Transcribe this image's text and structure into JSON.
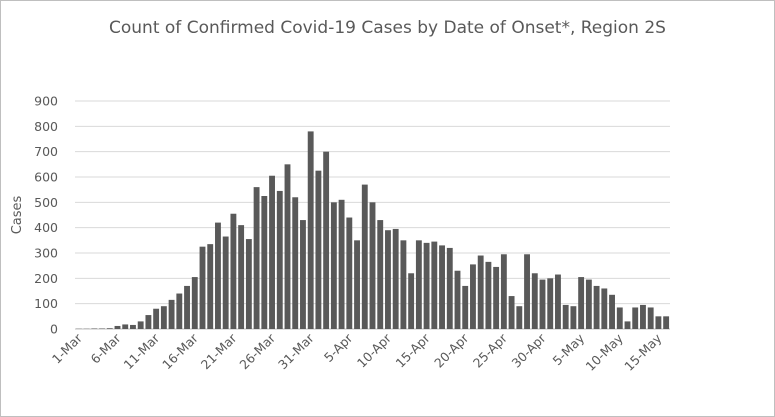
{
  "chart_data": {
    "type": "bar",
    "title": "Count of Confirmed Covid-19 Cases by Date of Onset*, Region 2S",
    "ylabel": "Cases",
    "xlabel": "",
    "ylim": [
      0,
      900
    ],
    "yticks": [
      0,
      100,
      200,
      300,
      400,
      500,
      600,
      700,
      800,
      900
    ],
    "grid": true,
    "legend": "none",
    "bar_color": "#595959",
    "grid_color": "#d9d9d9",
    "text_color": "#595959",
    "xtick_labels": [
      "1-Mar",
      "6-Mar",
      "11-Mar",
      "16-Mar",
      "21-Mar",
      "26-Mar",
      "31-Mar",
      "5-Apr",
      "10-Apr",
      "15-Apr",
      "20-Apr",
      "25-Apr",
      "30-Apr",
      "5-May",
      "10-May",
      "15-May"
    ],
    "categories": [
      "1-Mar",
      "2-Mar",
      "3-Mar",
      "4-Mar",
      "5-Mar",
      "6-Mar",
      "7-Mar",
      "8-Mar",
      "9-Mar",
      "10-Mar",
      "11-Mar",
      "12-Mar",
      "13-Mar",
      "14-Mar",
      "15-Mar",
      "16-Mar",
      "17-Mar",
      "18-Mar",
      "19-Mar",
      "20-Mar",
      "21-Mar",
      "22-Mar",
      "23-Mar",
      "24-Mar",
      "25-Mar",
      "26-Mar",
      "27-Mar",
      "28-Mar",
      "29-Mar",
      "30-Mar",
      "31-Mar",
      "1-Apr",
      "2-Apr",
      "3-Apr",
      "4-Apr",
      "5-Apr",
      "6-Apr",
      "7-Apr",
      "8-Apr",
      "9-Apr",
      "10-Apr",
      "11-Apr",
      "12-Apr",
      "13-Apr",
      "14-Apr",
      "15-Apr",
      "16-Apr",
      "17-Apr",
      "18-Apr",
      "19-Apr",
      "20-Apr",
      "21-Apr",
      "22-Apr",
      "23-Apr",
      "24-Apr",
      "25-Apr",
      "26-Apr",
      "27-Apr",
      "28-Apr",
      "29-Apr",
      "30-Apr",
      "1-May",
      "2-May",
      "3-May",
      "4-May",
      "5-May",
      "6-May",
      "7-May",
      "8-May",
      "9-May",
      "10-May",
      "11-May",
      "12-May",
      "13-May",
      "14-May",
      "15-May",
      "16-May"
    ],
    "values": [
      1,
      1,
      2,
      2,
      3,
      12,
      18,
      16,
      30,
      55,
      80,
      90,
      115,
      140,
      170,
      205,
      325,
      335,
      420,
      365,
      455,
      410,
      355,
      560,
      525,
      605,
      545,
      650,
      520,
      430,
      780,
      625,
      700,
      500,
      510,
      440,
      350,
      570,
      500,
      430,
      390,
      395,
      350,
      220,
      350,
      340,
      345,
      330,
      320,
      230,
      170,
      255,
      290,
      265,
      245,
      295,
      130,
      90,
      295,
      220,
      195,
      200,
      215,
      95,
      90,
      205,
      195,
      170,
      160,
      135,
      85,
      30,
      85,
      95,
      85,
      50,
      50
    ]
  }
}
